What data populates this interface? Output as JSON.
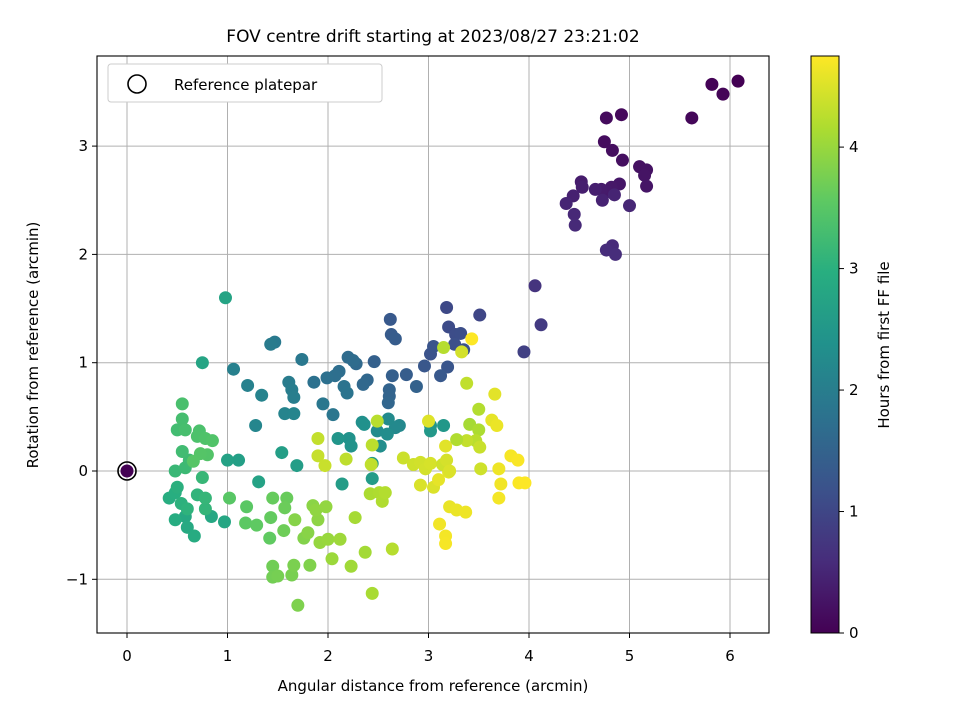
{
  "chart_data": {
    "type": "scatter",
    "title": "FOV centre drift starting at 2023/08/27 23:21:02",
    "xlabel": "Angular distance from reference (arcmin)",
    "ylabel": "Rotation from reference (arcmin)",
    "xlim": [
      -0.3,
      6.4
    ],
    "ylim": [
      -1.5,
      3.85
    ],
    "xticks": [
      0,
      1,
      2,
      3,
      4,
      5,
      6
    ],
    "yticks": [
      -1,
      0,
      1,
      2,
      3
    ],
    "xtick_labels": [
      "0",
      "1",
      "2",
      "3",
      "4",
      "5",
      "6"
    ],
    "ytick_labels": [
      "−1",
      "0",
      "1",
      "2",
      "3"
    ],
    "grid": true,
    "colormap": "viridis",
    "legend": {
      "position": "top-left",
      "entries": [
        "Reference platepar"
      ]
    },
    "reference_point": {
      "x": 0,
      "y": 0
    },
    "colorbar": {
      "label": "Hours from first FF file",
      "range": [
        0,
        4.75
      ],
      "ticks": [
        0,
        1,
        2,
        3,
        4
      ],
      "tick_labels": [
        "0",
        "1",
        "2",
        "3",
        "4"
      ]
    },
    "series": [
      {
        "points": [
          [
            6.08,
            3.6,
            0.0
          ],
          [
            5.82,
            3.57,
            0.03
          ],
          [
            5.93,
            3.48,
            0.05
          ],
          [
            5.62,
            3.26,
            0.08
          ],
          [
            4.92,
            3.29,
            0.11
          ],
          [
            4.77,
            3.26,
            0.13
          ],
          [
            4.75,
            3.04,
            0.15
          ],
          [
            4.83,
            2.96,
            0.17
          ],
          [
            4.93,
            2.87,
            0.19
          ],
          [
            5.1,
            2.81,
            0.21
          ],
          [
            5.17,
            2.78,
            0.23
          ],
          [
            5.15,
            2.73,
            0.25
          ],
          [
            5.17,
            2.63,
            0.27
          ],
          [
            4.9,
            2.65,
            0.29
          ],
          [
            4.82,
            2.62,
            0.31
          ],
          [
            4.78,
            2.58,
            0.33
          ],
          [
            4.72,
            2.6,
            0.35
          ],
          [
            4.52,
            2.67,
            0.37
          ],
          [
            4.53,
            2.62,
            0.39
          ],
          [
            4.66,
            2.6,
            0.41
          ],
          [
            4.44,
            2.54,
            0.43
          ],
          [
            4.73,
            2.5,
            0.45
          ],
          [
            4.85,
            2.55,
            0.47
          ],
          [
            4.37,
            2.47,
            0.49
          ],
          [
            5.0,
            2.45,
            0.51
          ],
          [
            4.45,
            2.37,
            0.53
          ],
          [
            4.46,
            2.27,
            0.55
          ],
          [
            4.83,
            2.08,
            0.57
          ],
          [
            4.77,
            2.04,
            0.59
          ],
          [
            4.86,
            2.0,
            0.61
          ],
          [
            4.06,
            1.71,
            0.7
          ],
          [
            4.12,
            1.35,
            0.8
          ],
          [
            3.95,
            1.1,
            0.9
          ],
          [
            3.51,
            1.44,
            1.0
          ],
          [
            3.18,
            1.51,
            1.05
          ],
          [
            3.2,
            1.33,
            1.08
          ],
          [
            3.27,
            1.26,
            1.1
          ],
          [
            3.32,
            1.27,
            1.12
          ],
          [
            3.26,
            1.17,
            1.15
          ],
          [
            3.35,
            1.12,
            1.18
          ],
          [
            3.02,
            1.08,
            1.2
          ],
          [
            3.05,
            1.15,
            1.23
          ],
          [
            3.19,
            0.96,
            1.25
          ],
          [
            2.96,
            0.97,
            1.28
          ],
          [
            3.12,
            0.88,
            1.3
          ],
          [
            2.62,
            1.4,
            1.32
          ],
          [
            2.63,
            1.26,
            1.35
          ],
          [
            2.67,
            1.22,
            1.37
          ],
          [
            2.78,
            0.89,
            1.4
          ],
          [
            2.64,
            0.88,
            1.42
          ],
          [
            2.46,
            1.01,
            1.45
          ],
          [
            2.88,
            0.78,
            1.48
          ],
          [
            2.61,
            0.75,
            1.5
          ],
          [
            2.61,
            0.69,
            1.52
          ],
          [
            2.6,
            0.63,
            1.55
          ],
          [
            2.39,
            0.84,
            1.57
          ],
          [
            2.35,
            0.8,
            1.6
          ],
          [
            2.28,
            0.99,
            1.62
          ],
          [
            2.2,
            1.05,
            1.65
          ],
          [
            2.25,
            1.02,
            1.67
          ],
          [
            2.11,
            0.92,
            1.7
          ],
          [
            2.07,
            0.88,
            1.72
          ],
          [
            1.99,
            0.86,
            1.75
          ],
          [
            1.86,
            0.82,
            1.77
          ],
          [
            2.16,
            0.78,
            1.8
          ],
          [
            2.19,
            0.72,
            1.82
          ],
          [
            2.05,
            0.52,
            1.85
          ],
          [
            1.95,
            0.62,
            1.87
          ],
          [
            1.74,
            1.03,
            1.9
          ],
          [
            1.47,
            1.19,
            1.92
          ],
          [
            1.43,
            1.17,
            1.95
          ],
          [
            1.61,
            0.82,
            1.97
          ],
          [
            1.64,
            0.75,
            2.0
          ],
          [
            1.66,
            0.68,
            2.02
          ],
          [
            1.06,
            0.94,
            2.05
          ],
          [
            1.2,
            0.79,
            2.07
          ],
          [
            1.34,
            0.7,
            2.1
          ],
          [
            1.57,
            0.53,
            2.12
          ],
          [
            1.66,
            0.53,
            2.15
          ],
          [
            1.28,
            0.42,
            2.17
          ],
          [
            2.71,
            0.42,
            2.2
          ],
          [
            2.67,
            0.4,
            2.22
          ],
          [
            2.6,
            0.48,
            2.25
          ],
          [
            2.49,
            0.37,
            2.27
          ],
          [
            2.59,
            0.34,
            2.3
          ],
          [
            2.52,
            0.23,
            2.32
          ],
          [
            2.34,
            0.45,
            2.35
          ],
          [
            2.36,
            0.43,
            2.37
          ],
          [
            2.21,
            0.3,
            2.4
          ],
          [
            2.23,
            0.23,
            2.42
          ],
          [
            2.1,
            0.3,
            2.45
          ],
          [
            3.02,
            0.42,
            2.47
          ],
          [
            3.15,
            0.42,
            2.5
          ],
          [
            3.02,
            0.37,
            2.52
          ],
          [
            2.44,
            0.07,
            2.55
          ],
          [
            2.44,
            -0.07,
            2.57
          ],
          [
            2.14,
            -0.12,
            2.6
          ],
          [
            1.69,
            0.05,
            2.62
          ],
          [
            1.54,
            0.17,
            2.65
          ],
          [
            1.11,
            0.1,
            2.67
          ],
          [
            1.0,
            0.1,
            2.7
          ],
          [
            1.31,
            -0.1,
            2.72
          ],
          [
            0.98,
            1.6,
            2.75
          ],
          [
            0.75,
            1.0,
            2.77
          ],
          [
            0.97,
            -0.47,
            2.8
          ],
          [
            0.84,
            -0.42,
            2.82
          ],
          [
            0.58,
            -0.42,
            2.85
          ],
          [
            0.6,
            -0.52,
            2.87
          ],
          [
            0.67,
            -0.6,
            2.9
          ],
          [
            0.48,
            -0.45,
            2.92
          ],
          [
            0.42,
            -0.25,
            2.95
          ],
          [
            0.48,
            -0.2,
            2.97
          ],
          [
            0.5,
            -0.15,
            3.0
          ],
          [
            0.54,
            -0.3,
            3.02
          ],
          [
            0.6,
            -0.35,
            3.05
          ],
          [
            0.7,
            -0.22,
            3.07
          ],
          [
            0.78,
            -0.35,
            3.1
          ],
          [
            0.78,
            -0.25,
            3.12
          ],
          [
            0.75,
            -0.06,
            3.15
          ],
          [
            0.48,
            0.0,
            3.17
          ],
          [
            0.58,
            0.03,
            3.2
          ],
          [
            0.62,
            0.1,
            3.22
          ],
          [
            0.55,
            0.18,
            3.25
          ],
          [
            0.5,
            0.38,
            3.27
          ],
          [
            0.55,
            0.48,
            3.3
          ],
          [
            0.58,
            0.38,
            3.32
          ],
          [
            0.55,
            0.62,
            3.34
          ],
          [
            0.72,
            0.37,
            3.36
          ],
          [
            0.7,
            0.32,
            3.38
          ],
          [
            0.78,
            0.3,
            3.4
          ],
          [
            0.85,
            0.28,
            3.42
          ],
          [
            0.8,
            0.15,
            3.44
          ],
          [
            0.73,
            0.16,
            3.46
          ],
          [
            0.66,
            0.09,
            3.48
          ],
          [
            1.02,
            -0.25,
            3.5
          ],
          [
            1.19,
            -0.33,
            3.52
          ],
          [
            1.18,
            -0.48,
            3.54
          ],
          [
            1.29,
            -0.5,
            3.56
          ],
          [
            1.42,
            -0.62,
            3.58
          ],
          [
            1.43,
            -0.43,
            3.6
          ],
          [
            1.45,
            -0.25,
            3.62
          ],
          [
            1.59,
            -0.25,
            3.64
          ],
          [
            1.57,
            -0.34,
            3.66
          ],
          [
            1.56,
            -0.55,
            3.68
          ],
          [
            1.45,
            -0.88,
            3.7
          ],
          [
            1.45,
            -0.98,
            3.72
          ],
          [
            1.5,
            -0.97,
            3.74
          ],
          [
            1.64,
            -0.96,
            3.76
          ],
          [
            1.66,
            -0.87,
            3.78
          ],
          [
            1.7,
            -1.24,
            3.8
          ],
          [
            1.82,
            -0.87,
            3.82
          ],
          [
            1.76,
            -0.62,
            3.84
          ],
          [
            1.67,
            -0.45,
            3.86
          ],
          [
            1.8,
            -0.57,
            3.88
          ],
          [
            1.85,
            -0.32,
            3.9
          ],
          [
            1.9,
            -0.45,
            3.92
          ],
          [
            1.88,
            -0.36,
            3.94
          ],
          [
            1.98,
            -0.33,
            3.96
          ],
          [
            1.92,
            -0.66,
            3.98
          ],
          [
            2.0,
            -0.63,
            4.0
          ],
          [
            2.04,
            -0.81,
            4.02
          ],
          [
            2.12,
            -0.63,
            4.04
          ],
          [
            2.23,
            -0.88,
            4.06
          ],
          [
            2.37,
            -0.75,
            4.08
          ],
          [
            2.27,
            -0.43,
            4.1
          ],
          [
            2.44,
            -1.13,
            4.12
          ],
          [
            2.42,
            -0.21,
            4.14
          ],
          [
            2.51,
            -0.2,
            4.16
          ],
          [
            2.54,
            -0.28,
            4.18
          ],
          [
            2.57,
            -0.2,
            4.2
          ],
          [
            2.64,
            -0.72,
            4.22
          ],
          [
            2.49,
            0.46,
            4.24
          ],
          [
            2.44,
            0.24,
            4.26
          ],
          [
            2.18,
            0.11,
            4.28
          ],
          [
            2.43,
            0.06,
            4.3
          ],
          [
            1.9,
            0.3,
            4.32
          ],
          [
            1.9,
            0.14,
            4.34
          ],
          [
            1.97,
            0.05,
            4.36
          ],
          [
            2.75,
            0.12,
            4.38
          ],
          [
            2.85,
            0.06,
            4.4
          ],
          [
            2.92,
            0.08,
            4.42
          ],
          [
            2.97,
            0.02,
            4.44
          ],
          [
            3.02,
            0.07,
            4.46
          ],
          [
            2.92,
            -0.13,
            4.48
          ],
          [
            3.05,
            -0.15,
            4.5
          ],
          [
            3.0,
            0.46,
            4.52
          ],
          [
            3.17,
            0.23,
            4.54
          ],
          [
            3.2,
            -0.01,
            4.56
          ],
          [
            3.1,
            -0.08,
            4.58
          ],
          [
            3.21,
            -0.33,
            4.6
          ],
          [
            3.28,
            -0.36,
            4.62
          ],
          [
            3.37,
            -0.38,
            4.64
          ],
          [
            3.11,
            -0.49,
            4.66
          ],
          [
            3.17,
            -0.6,
            4.68
          ],
          [
            3.17,
            -0.67,
            4.7
          ],
          [
            3.15,
            1.14,
            4.22
          ],
          [
            3.33,
            1.1,
            4.44
          ],
          [
            3.43,
            1.22,
            4.75
          ],
          [
            3.38,
            0.81,
            4.3
          ],
          [
            3.5,
            0.57,
            4.2
          ],
          [
            3.41,
            0.43,
            4.1
          ],
          [
            3.5,
            0.38,
            4.15
          ],
          [
            3.47,
            0.28,
            4.25
          ],
          [
            3.38,
            0.28,
            4.32
          ],
          [
            3.51,
            0.22,
            4.36
          ],
          [
            3.28,
            0.29,
            4.18
          ],
          [
            3.52,
            0.02,
            4.4
          ],
          [
            3.66,
            0.71,
            4.55
          ],
          [
            3.63,
            0.47,
            4.58
          ],
          [
            3.68,
            0.42,
            4.62
          ],
          [
            3.7,
            0.02,
            4.64
          ],
          [
            3.72,
            -0.12,
            4.66
          ],
          [
            3.7,
            -0.25,
            4.68
          ],
          [
            3.82,
            0.14,
            4.7
          ],
          [
            3.89,
            0.1,
            4.72
          ],
          [
            3.9,
            -0.11,
            4.73
          ],
          [
            3.96,
            -0.11,
            4.74
          ],
          [
            3.14,
            0.06,
            4.4
          ],
          [
            3.18,
            0.1,
            4.45
          ],
          [
            3.21,
            0.0,
            4.5
          ]
        ]
      }
    ]
  }
}
